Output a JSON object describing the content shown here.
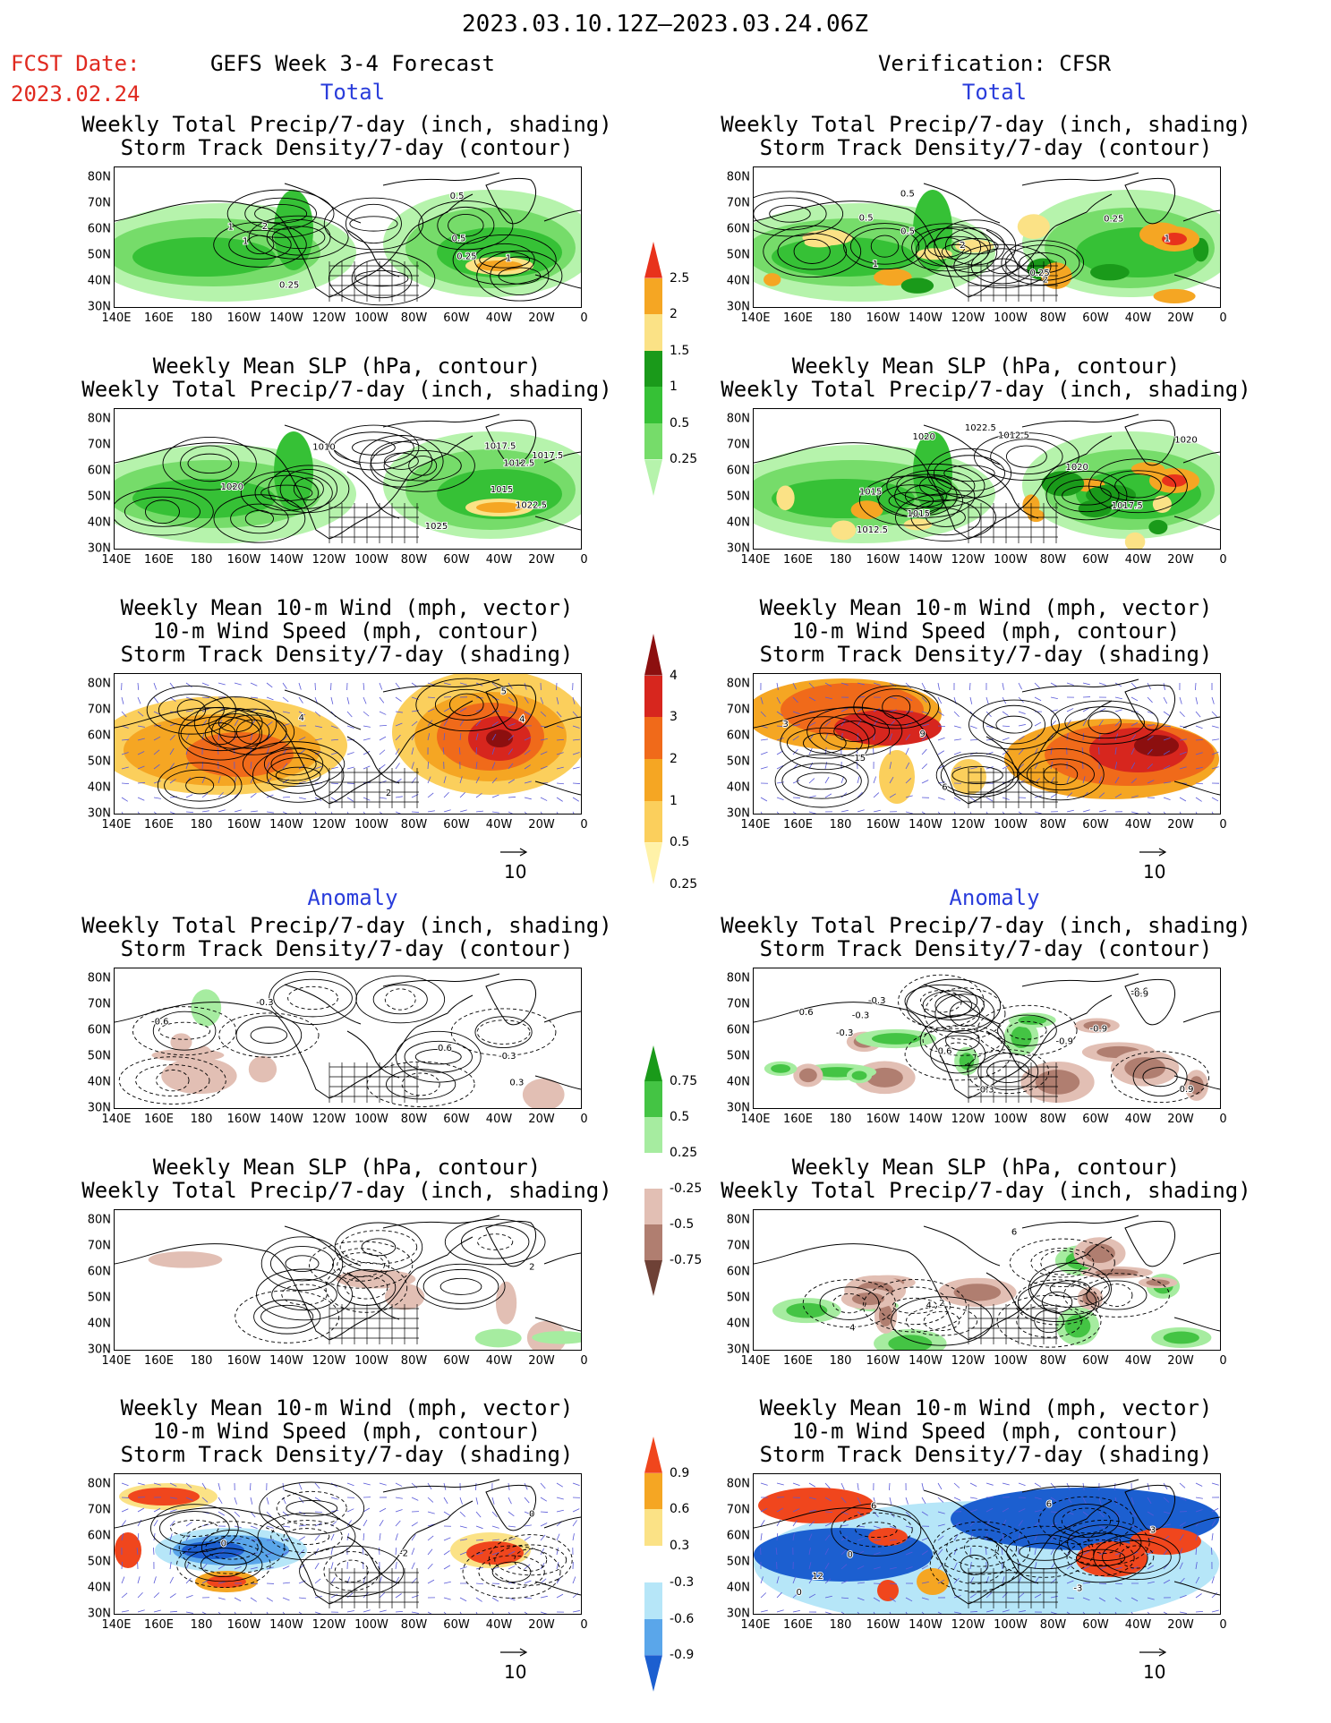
{
  "header": {
    "period": "2023.03.10.12Z–2023.03.24.06Z",
    "fcst_label": "FCST Date:",
    "fcst_date": "2023.02.24",
    "model_title": "GEFS Week 3-4 Forecast",
    "verif_title": "Verification: CFSR"
  },
  "sections": {
    "total": "Total",
    "anomaly": "Anomaly"
  },
  "panel_titles": {
    "precip_storm": [
      "Weekly Total Precip/7-day (inch, shading)",
      "Storm Track Density/7-day (contour)"
    ],
    "slp_precip": [
      "Weekly Mean SLP (hPa, contour)",
      "Weekly Total Precip/7-day (inch, shading)"
    ],
    "wind_storm": [
      "Weekly Mean 10-m Wind (mph, vector)",
      "10-m Wind Speed (mph, contour)",
      "Storm Track Density/7-day (shading)"
    ]
  },
  "axes": {
    "lat_labels": [
      "80N",
      "70N",
      "60N",
      "50N",
      "40N",
      "30N"
    ],
    "lon_labels": [
      "140E",
      "160E",
      "180",
      "160W",
      "140W",
      "120W",
      "100W",
      "80W",
      "60W",
      "40W",
      "20W",
      "0"
    ]
  },
  "reference_vector": "10",
  "colorbars": {
    "precip_total": {
      "labels": [
        "2.5",
        "2",
        "1.5",
        "1",
        "0.5",
        "0.25"
      ],
      "colors": [
        "#e8321c",
        "#f5a623",
        "#fbe286",
        "#1a9a1a",
        "#36c136",
        "#76dc6a",
        "#b6f3ac"
      ]
    },
    "storm_total": {
      "labels": [
        "4",
        "3",
        "2",
        "1",
        "0.5",
        "0.25"
      ],
      "colors": [
        "#8c0f0f",
        "#d7261e",
        "#f06a1a",
        "#f5a623",
        "#fbcf5c",
        "#fff2a8"
      ]
    },
    "precip_anom": {
      "labels": [
        "0.75",
        "0.5",
        "0.25",
        "-0.25",
        "-0.5",
        "-0.75"
      ],
      "colors": [
        "#1a9a1a",
        "#44c444",
        "#a6eca0",
        "#ffffff",
        "#e2bfb4",
        "#b07e70",
        "#6e4136"
      ]
    },
    "storm_anom": {
      "labels": [
        "0.9",
        "0.6",
        "0.3",
        "-0.3",
        "-0.6",
        "-0.9"
      ],
      "colors": [
        "#f0461d",
        "#f5a623",
        "#fbe286",
        "#ffffff",
        "#b6e6f8",
        "#5aa6ea",
        "#1c5fd0"
      ]
    }
  },
  "contour_labels": {
    "f_precip_total": [
      "1",
      "0.25",
      "0.5",
      "1",
      "0.5",
      "0.25",
      "1",
      "2"
    ],
    "v_precip_total": [
      "2",
      "0.5",
      "1",
      "0.5",
      "0.25",
      "0.25",
      "1",
      "0.5",
      "2"
    ],
    "f_slp_total": [
      "1022.5",
      "1015",
      "1017.5",
      "1012.5",
      "1010",
      "1025",
      "1017.5",
      "1020"
    ],
    "v_slp_total": [
      "1020",
      "1017.5",
      "1015",
      "1012.5",
      "1022.5",
      "1012.5",
      "1020",
      "1015",
      "1020"
    ],
    "f_wind_total": [
      "2",
      "4",
      "4",
      "5"
    ],
    "v_wind_total": [
      "3",
      "9",
      "6",
      "15"
    ],
    "f_precip_anom": [
      "-0.3",
      "0.3",
      "-0.6",
      "-0.3",
      "0.6"
    ],
    "v_precip_anom": [
      "-0.9",
      "-0.6",
      "-0.3",
      "-0.3",
      "-0.9",
      "-0.6",
      "-0.3",
      "0.9",
      "0.6",
      "-0.3",
      "-0.9"
    ],
    "f_slp_anom": [
      "2"
    ],
    "v_slp_anom": [
      "4",
      "2",
      "6",
      "4"
    ],
    "f_wind_anom": [
      "-2",
      "0",
      "0"
    ],
    "v_wind_anom": [
      "0",
      "3",
      "6",
      "0",
      "12",
      "6",
      "-3"
    ]
  }
}
